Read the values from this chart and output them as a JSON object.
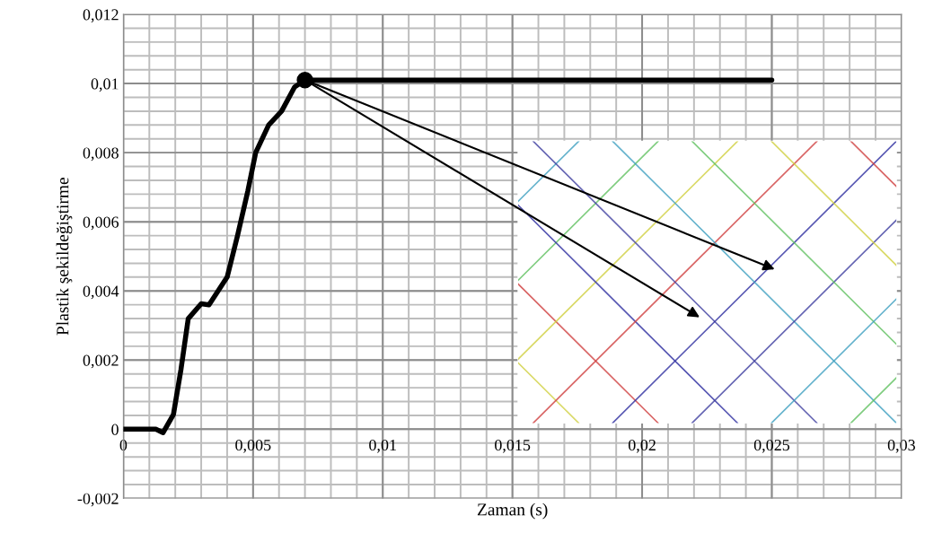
{
  "chart_data": {
    "type": "line",
    "xlabel": "Zaman (s)",
    "ylabel": "Plastik şekildeğiştirme",
    "series": [
      {
        "color": "#000000",
        "x": [
          0,
          0.00125,
          0.00153,
          0.00193,
          0.00222,
          0.0025,
          0.003,
          0.0033,
          0.004,
          0.0044,
          0.0048,
          0.0051,
          0.0056,
          0.0061,
          0.0066,
          0.007,
          0.025
        ],
        "values": [
          0,
          0,
          -0.0001,
          0.00043,
          0.00173,
          0.0032,
          0.00363,
          0.0036,
          0.0044,
          0.0056,
          0.0069,
          0.008,
          0.0088,
          0.0092,
          0.0099,
          0.0101,
          0.0101
        ]
      },
      {
        "type": "scatter",
        "marker": "circle",
        "color": "#000000",
        "x": [
          0.007
        ],
        "values": [
          0.0101
        ]
      }
    ],
    "xlim": [
      0,
      0.03
    ],
    "ylim": [
      -0.002,
      0.012
    ],
    "xticks": [
      {
        "value": 0,
        "label": "0"
      },
      {
        "value": 0.005,
        "label": "0,005"
      },
      {
        "value": 0.01,
        "label": "0,01"
      },
      {
        "value": 0.015,
        "label": "0,015"
      },
      {
        "value": 0.02,
        "label": "0,02"
      },
      {
        "value": 0.025,
        "label": "0,025"
      },
      {
        "value": 0.03,
        "label": "0,03"
      }
    ],
    "yticks": [
      {
        "value": -0.002,
        "label": "-0,002"
      },
      {
        "value": 0,
        "label": "0"
      },
      {
        "value": 0.002,
        "label": "0,002"
      },
      {
        "value": 0.004,
        "label": "0,004"
      },
      {
        "value": 0.006,
        "label": "0,006"
      },
      {
        "value": 0.008,
        "label": "0,008"
      },
      {
        "value": 0.01,
        "label": "0,01"
      },
      {
        "value": 0.012,
        "label": "0,012"
      }
    ],
    "grid": true
  }
}
